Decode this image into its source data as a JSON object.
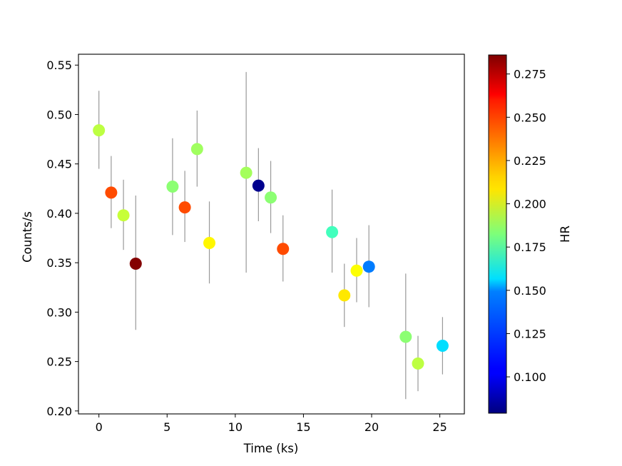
{
  "chart_data": {
    "type": "scatter",
    "xlabel": "Time (ks)",
    "ylabel": "Counts/s",
    "xlim": [
      -1.5,
      26.8
    ],
    "ylim": [
      0.197,
      0.561
    ],
    "xticks": [
      0,
      5,
      10,
      15,
      20,
      25
    ],
    "yticks": [
      0.2,
      0.25,
      0.3,
      0.35,
      0.4,
      0.45,
      0.5,
      0.55
    ],
    "grid": false,
    "points": [
      {
        "x": 0.0,
        "y": 0.484,
        "err_low": 0.445,
        "err_high": 0.524,
        "hr": 0.195
      },
      {
        "x": 0.9,
        "y": 0.421,
        "err_low": 0.385,
        "err_high": 0.458,
        "hr": 0.245
      },
      {
        "x": 1.8,
        "y": 0.398,
        "err_low": 0.363,
        "err_high": 0.434,
        "hr": 0.197
      },
      {
        "x": 2.7,
        "y": 0.349,
        "err_low": 0.282,
        "err_high": 0.418,
        "hr": 0.285
      },
      {
        "x": 5.4,
        "y": 0.427,
        "err_low": 0.378,
        "err_high": 0.476,
        "hr": 0.185
      },
      {
        "x": 6.3,
        "y": 0.406,
        "err_low": 0.371,
        "err_high": 0.443,
        "hr": 0.245
      },
      {
        "x": 7.2,
        "y": 0.465,
        "err_low": 0.427,
        "err_high": 0.504,
        "hr": 0.189
      },
      {
        "x": 8.1,
        "y": 0.37,
        "err_low": 0.329,
        "err_high": 0.412,
        "hr": 0.21
      },
      {
        "x": 10.8,
        "y": 0.441,
        "err_low": 0.34,
        "err_high": 0.543,
        "hr": 0.19
      },
      {
        "x": 11.7,
        "y": 0.428,
        "err_low": 0.392,
        "err_high": 0.466,
        "hr": 0.082
      },
      {
        "x": 12.6,
        "y": 0.416,
        "err_low": 0.38,
        "err_high": 0.453,
        "hr": 0.185
      },
      {
        "x": 13.5,
        "y": 0.364,
        "err_low": 0.331,
        "err_high": 0.398,
        "hr": 0.245
      },
      {
        "x": 17.1,
        "y": 0.381,
        "err_low": 0.34,
        "err_high": 0.424,
        "hr": 0.17
      },
      {
        "x": 18.0,
        "y": 0.317,
        "err_low": 0.285,
        "err_high": 0.349,
        "hr": 0.213
      },
      {
        "x": 18.9,
        "y": 0.342,
        "err_low": 0.31,
        "err_high": 0.375,
        "hr": 0.208
      },
      {
        "x": 19.8,
        "y": 0.346,
        "err_low": 0.305,
        "err_high": 0.388,
        "hr": 0.13
      },
      {
        "x": 22.5,
        "y": 0.275,
        "err_low": 0.212,
        "err_high": 0.339,
        "hr": 0.185
      },
      {
        "x": 23.4,
        "y": 0.248,
        "err_low": 0.22,
        "err_high": 0.276,
        "hr": 0.195
      },
      {
        "x": 25.2,
        "y": 0.266,
        "err_low": 0.237,
        "err_high": 0.295,
        "hr": 0.15
      }
    ],
    "colorbar": {
      "label": "HR",
      "colormap": "jet",
      "range": [
        0.079,
        0.286
      ],
      "ticks": [
        0.1,
        0.125,
        0.15,
        0.175,
        0.2,
        0.225,
        0.25,
        0.275
      ]
    },
    "errorbar_color": "#999999",
    "marker_colormap": "jet"
  }
}
